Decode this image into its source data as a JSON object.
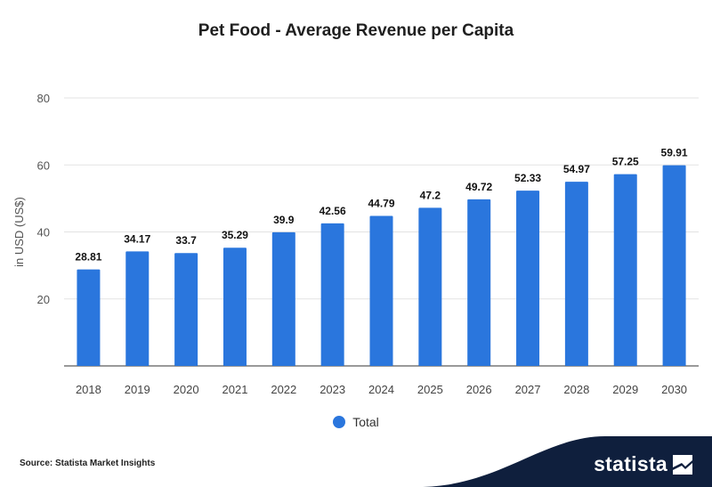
{
  "chart_data": {
    "type": "bar",
    "title": "Pet Food - Average Revenue per Capita",
    "ylabel": "in USD (US$)",
    "xlabel": "",
    "ylim": [
      0,
      80
    ],
    "yticks": [
      20,
      40,
      60,
      80
    ],
    "grid": true,
    "legend_position": "bottom",
    "categories": [
      "2018",
      "2019",
      "2020",
      "2021",
      "2022",
      "2023",
      "2024",
      "2025",
      "2026",
      "2027",
      "2028",
      "2029",
      "2030"
    ],
    "series": [
      {
        "name": "Total",
        "color": "#2a76dd",
        "values": [
          28.81,
          34.17,
          33.7,
          35.29,
          39.9,
          42.56,
          44.79,
          47.2,
          49.72,
          52.33,
          54.97,
          57.25,
          59.91
        ]
      }
    ]
  },
  "source": "Source: Statista Market Insights",
  "brand": {
    "name": "statista",
    "color": "#0f1f3d",
    "icon": "statista-logo-icon"
  }
}
